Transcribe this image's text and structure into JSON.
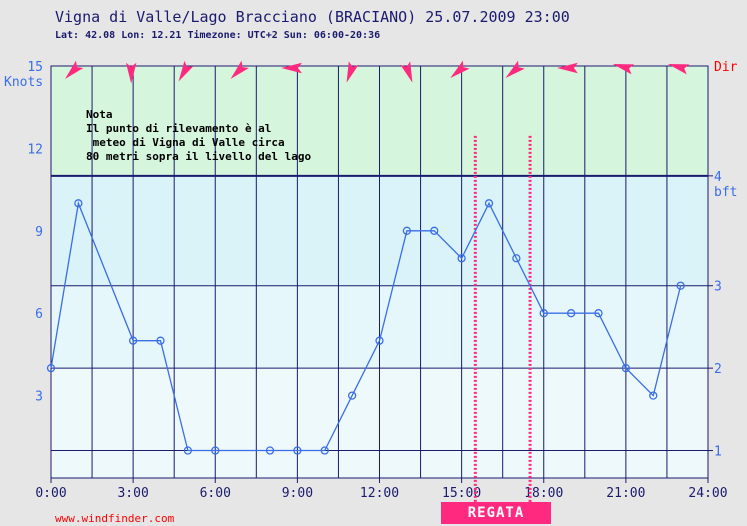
{
  "header": {
    "title": "Vigna di Valle/Lago Bracciano (BRACIANO) 25.07.2009 23:00",
    "subtitle": "Lat: 42.08 Lon: 12.21 Timezone: UTC+2 Sun: 06:00-20:36"
  },
  "note": {
    "heading": "Nota",
    "lines": [
      "Il punto di rilevamento è al",
      " meteo di Vigna di Valle circa",
      "80 metri sopra il livello del lago"
    ]
  },
  "credit": "www.windfinder.com",
  "regata_label": "REGATA",
  "chart_data": {
    "type": "line",
    "title": "Vigna di Valle/Lago Bracciano (BRACIANO) 25.07.2009 23:00",
    "subtitle": "Lat: 42.08 Lon: 12.21 Timezone: UTC+2 Sun: 06:00-20:36",
    "xlabel": "",
    "ylabel": "Knots",
    "ylabel_right": "Dir",
    "bft_label": "bft",
    "x_ticks": [
      "0:00",
      "3:00",
      "6:00",
      "9:00",
      "12:00",
      "15:00",
      "18:00",
      "21:00",
      "24:00"
    ],
    "xlim": [
      0,
      24
    ],
    "ylim": [
      0,
      15
    ],
    "y_ticks": [
      3,
      6,
      9,
      12,
      15
    ],
    "bft_levels": [
      {
        "label": "1",
        "knots": 1
      },
      {
        "label": "2",
        "knots": 4
      },
      {
        "label": "3",
        "knots": 7
      },
      {
        "label": "4",
        "knots": 11
      }
    ],
    "series": [
      {
        "x": [
          0,
          1,
          3,
          4,
          5,
          6,
          8,
          9,
          10,
          11,
          12,
          13,
          14,
          15,
          16,
          17,
          18,
          19,
          20,
          21,
          22,
          23
        ],
        "values": [
          4,
          10,
          5,
          5,
          1,
          1,
          1,
          1,
          1,
          3,
          5,
          9,
          9,
          8,
          10,
          8,
          6,
          6,
          6,
          4,
          3,
          7
        ]
      }
    ],
    "wind_direction_arrows_deg": [
      225,
      180,
      210,
      225,
      270,
      200,
      160,
      230,
      230,
      270,
      285,
      285
    ],
    "regata_window": [
      15.5,
      17.5
    ],
    "colors": {
      "line": "#3a6ee8",
      "grid": "#1a1a6e",
      "arrow": "#ff2a7f",
      "regata": "#ff2a7f",
      "tick_labels": "#3a6ee8",
      "band_top": "#d6f5dd",
      "band_mid": "#d9f3f8",
      "band_low": "#e6f7fb",
      "band_bottom": "#eef9fc"
    },
    "grid": true
  }
}
